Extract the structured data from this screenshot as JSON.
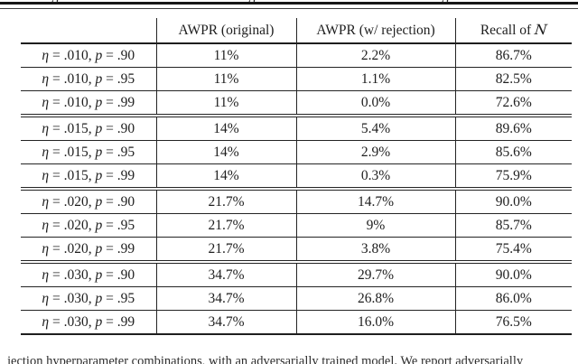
{
  "document": {
    "clipped_top_glyph": "g",
    "clipped_bottom_caption": "jection hyperparameter combinations, with an adversarially trained model. We report adversarially"
  },
  "table": {
    "columns": [
      "",
      "AWPR (original)",
      "AWPR (w/ rejection)",
      "Recall of 𝒩"
    ],
    "group_separators_after_rows": [
      3,
      6,
      9
    ],
    "rows": [
      {
        "label": "η = .010, p = .90",
        "awpr_original": "11%",
        "awpr_rejection": "2.2%",
        "recall_n": "86.7%"
      },
      {
        "label": "η = .010, p = .95",
        "awpr_original": "11%",
        "awpr_rejection": "1.1%",
        "recall_n": "82.5%"
      },
      {
        "label": "η = .010, p = .99",
        "awpr_original": "11%",
        "awpr_rejection": "0.0%",
        "recall_n": "72.6%"
      },
      {
        "label": "η = .015, p = .90",
        "awpr_original": "14%",
        "awpr_rejection": "5.4%",
        "recall_n": "89.6%"
      },
      {
        "label": "η = .015, p = .95",
        "awpr_original": "14%",
        "awpr_rejection": "2.9%",
        "recall_n": "85.6%"
      },
      {
        "label": "η = .015, p = .99",
        "awpr_original": "14%",
        "awpr_rejection": "0.3%",
        "recall_n": "75.9%"
      },
      {
        "label": "η = .020, p = .90",
        "awpr_original": "21.7%",
        "awpr_rejection": "14.7%",
        "recall_n": "90.0%"
      },
      {
        "label": "η = .020, p = .95",
        "awpr_original": "21.7%",
        "awpr_rejection": "9%",
        "recall_n": "85.7%"
      },
      {
        "label": "η = .020, p = .99",
        "awpr_original": "21.7%",
        "awpr_rejection": "3.8%",
        "recall_n": "75.4%"
      },
      {
        "label": "η = .030, p = .90",
        "awpr_original": "34.7%",
        "awpr_rejection": "29.7%",
        "recall_n": "90.0%"
      },
      {
        "label": "η = .030, p = .95",
        "awpr_original": "34.7%",
        "awpr_rejection": "26.8%",
        "recall_n": "86.0%"
      },
      {
        "label": "η = .030, p = .99",
        "awpr_original": "34.7%",
        "awpr_rejection": "16.0%",
        "recall_n": "76.5%"
      }
    ]
  }
}
